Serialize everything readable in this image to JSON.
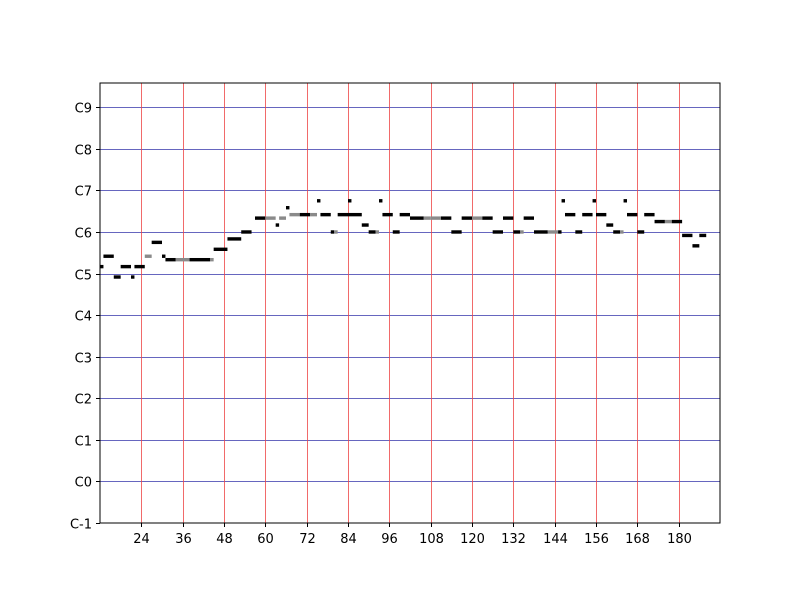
{
  "chart_data": {
    "type": "piano-roll",
    "xlabel": "",
    "ylabel": "",
    "xlim": [
      12,
      192
    ],
    "ylim": [
      0,
      127
    ],
    "x_ticks": [
      24,
      36,
      48,
      60,
      72,
      84,
      96,
      108,
      120,
      132,
      144,
      156,
      168,
      180
    ],
    "y_ticks": [
      {
        "pitch": 0,
        "label": "C-1"
      },
      {
        "pitch": 12,
        "label": "C0"
      },
      {
        "pitch": 24,
        "label": "C1"
      },
      {
        "pitch": 36,
        "label": "C2"
      },
      {
        "pitch": 48,
        "label": "C3"
      },
      {
        "pitch": 60,
        "label": "C4"
      },
      {
        "pitch": 72,
        "label": "C5"
      },
      {
        "pitch": 84,
        "label": "C6"
      },
      {
        "pitch": 96,
        "label": "C7"
      },
      {
        "pitch": 108,
        "label": "C8"
      },
      {
        "pitch": 120,
        "label": "C9"
      }
    ],
    "grid": {
      "vertical": true,
      "horizontal": true
    },
    "notes": [
      {
        "start": 12,
        "dur": 1,
        "pitch": 74,
        "shade": "black"
      },
      {
        "start": 13,
        "dur": 3,
        "pitch": 77,
        "shade": "black"
      },
      {
        "start": 16,
        "dur": 2,
        "pitch": 71,
        "shade": "black"
      },
      {
        "start": 18,
        "dur": 3,
        "pitch": 74,
        "shade": "black"
      },
      {
        "start": 21,
        "dur": 1,
        "pitch": 71,
        "shade": "black"
      },
      {
        "start": 22,
        "dur": 3,
        "pitch": 74,
        "shade": "black"
      },
      {
        "start": 25,
        "dur": 2,
        "pitch": 77,
        "shade": "gray"
      },
      {
        "start": 27,
        "dur": 3,
        "pitch": 81,
        "shade": "black"
      },
      {
        "start": 30,
        "dur": 1,
        "pitch": 77,
        "shade": "black"
      },
      {
        "start": 31,
        "dur": 3,
        "pitch": 76,
        "shade": "black"
      },
      {
        "start": 34,
        "dur": 4,
        "pitch": 76,
        "shade": "gray"
      },
      {
        "start": 38,
        "dur": 6,
        "pitch": 76,
        "shade": "black"
      },
      {
        "start": 44,
        "dur": 1,
        "pitch": 76,
        "shade": "gray"
      },
      {
        "start": 45,
        "dur": 4,
        "pitch": 79,
        "shade": "black"
      },
      {
        "start": 49,
        "dur": 4,
        "pitch": 82,
        "shade": "black"
      },
      {
        "start": 53,
        "dur": 3,
        "pitch": 84,
        "shade": "black"
      },
      {
        "start": 57,
        "dur": 3,
        "pitch": 88,
        "shade": "black"
      },
      {
        "start": 60,
        "dur": 3,
        "pitch": 88,
        "shade": "gray"
      },
      {
        "start": 63,
        "dur": 1,
        "pitch": 86,
        "shade": "black"
      },
      {
        "start": 64,
        "dur": 2,
        "pitch": 88,
        "shade": "gray"
      },
      {
        "start": 66,
        "dur": 1,
        "pitch": 91,
        "shade": "black"
      },
      {
        "start": 67,
        "dur": 3,
        "pitch": 89,
        "shade": "gray"
      },
      {
        "start": 70,
        "dur": 3,
        "pitch": 89,
        "shade": "black"
      },
      {
        "start": 73,
        "dur": 2,
        "pitch": 89,
        "shade": "gray"
      },
      {
        "start": 75,
        "dur": 1,
        "pitch": 93,
        "shade": "black"
      },
      {
        "start": 76,
        "dur": 3,
        "pitch": 89,
        "shade": "black"
      },
      {
        "start": 79,
        "dur": 1,
        "pitch": 84,
        "shade": "black"
      },
      {
        "start": 80,
        "dur": 1,
        "pitch": 84,
        "shade": "gray"
      },
      {
        "start": 81,
        "dur": 3,
        "pitch": 89,
        "shade": "black"
      },
      {
        "start": 84,
        "dur": 1,
        "pitch": 93,
        "shade": "black"
      },
      {
        "start": 84,
        "dur": 4,
        "pitch": 89,
        "shade": "black"
      },
      {
        "start": 88,
        "dur": 2,
        "pitch": 86,
        "shade": "black"
      },
      {
        "start": 90,
        "dur": 2,
        "pitch": 84,
        "shade": "black"
      },
      {
        "start": 92,
        "dur": 1,
        "pitch": 84,
        "shade": "gray"
      },
      {
        "start": 93,
        "dur": 1,
        "pitch": 93,
        "shade": "black"
      },
      {
        "start": 94,
        "dur": 3,
        "pitch": 89,
        "shade": "black"
      },
      {
        "start": 97,
        "dur": 2,
        "pitch": 84,
        "shade": "black"
      },
      {
        "start": 99,
        "dur": 3,
        "pitch": 89,
        "shade": "black"
      },
      {
        "start": 102,
        "dur": 4,
        "pitch": 88,
        "shade": "black"
      },
      {
        "start": 106,
        "dur": 2,
        "pitch": 88,
        "shade": "gray"
      },
      {
        "start": 108,
        "dur": 3,
        "pitch": 88,
        "shade": "gray"
      },
      {
        "start": 111,
        "dur": 3,
        "pitch": 88,
        "shade": "black"
      },
      {
        "start": 114,
        "dur": 3,
        "pitch": 84,
        "shade": "black"
      },
      {
        "start": 117,
        "dur": 3,
        "pitch": 88,
        "shade": "black"
      },
      {
        "start": 120,
        "dur": 3,
        "pitch": 88,
        "shade": "gray"
      },
      {
        "start": 123,
        "dur": 3,
        "pitch": 88,
        "shade": "black"
      },
      {
        "start": 126,
        "dur": 3,
        "pitch": 84,
        "shade": "black"
      },
      {
        "start": 129,
        "dur": 3,
        "pitch": 88,
        "shade": "black"
      },
      {
        "start": 132,
        "dur": 2,
        "pitch": 84,
        "shade": "black"
      },
      {
        "start": 134,
        "dur": 1,
        "pitch": 84,
        "shade": "gray"
      },
      {
        "start": 135,
        "dur": 3,
        "pitch": 88,
        "shade": "black"
      },
      {
        "start": 138,
        "dur": 4,
        "pitch": 84,
        "shade": "black"
      },
      {
        "start": 142,
        "dur": 3,
        "pitch": 84,
        "shade": "gray"
      },
      {
        "start": 145,
        "dur": 1,
        "pitch": 84,
        "shade": "black"
      },
      {
        "start": 146,
        "dur": 1,
        "pitch": 93,
        "shade": "black"
      },
      {
        "start": 147,
        "dur": 3,
        "pitch": 89,
        "shade": "black"
      },
      {
        "start": 150,
        "dur": 2,
        "pitch": 84,
        "shade": "black"
      },
      {
        "start": 152,
        "dur": 3,
        "pitch": 89,
        "shade": "black"
      },
      {
        "start": 155,
        "dur": 1,
        "pitch": 93,
        "shade": "black"
      },
      {
        "start": 156,
        "dur": 3,
        "pitch": 89,
        "shade": "black"
      },
      {
        "start": 159,
        "dur": 2,
        "pitch": 86,
        "shade": "black"
      },
      {
        "start": 161,
        "dur": 2,
        "pitch": 84,
        "shade": "black"
      },
      {
        "start": 163,
        "dur": 1,
        "pitch": 84,
        "shade": "gray"
      },
      {
        "start": 164,
        "dur": 1,
        "pitch": 93,
        "shade": "black"
      },
      {
        "start": 165,
        "dur": 3,
        "pitch": 89,
        "shade": "black"
      },
      {
        "start": 168,
        "dur": 2,
        "pitch": 84,
        "shade": "black"
      },
      {
        "start": 170,
        "dur": 3,
        "pitch": 89,
        "shade": "black"
      },
      {
        "start": 173,
        "dur": 3,
        "pitch": 87,
        "shade": "black"
      },
      {
        "start": 176,
        "dur": 2,
        "pitch": 87,
        "shade": "gray"
      },
      {
        "start": 178,
        "dur": 3,
        "pitch": 87,
        "shade": "black"
      },
      {
        "start": 181,
        "dur": 3,
        "pitch": 83,
        "shade": "black"
      },
      {
        "start": 184,
        "dur": 2,
        "pitch": 80,
        "shade": "black"
      },
      {
        "start": 186,
        "dur": 2,
        "pitch": 83,
        "shade": "black"
      }
    ]
  }
}
